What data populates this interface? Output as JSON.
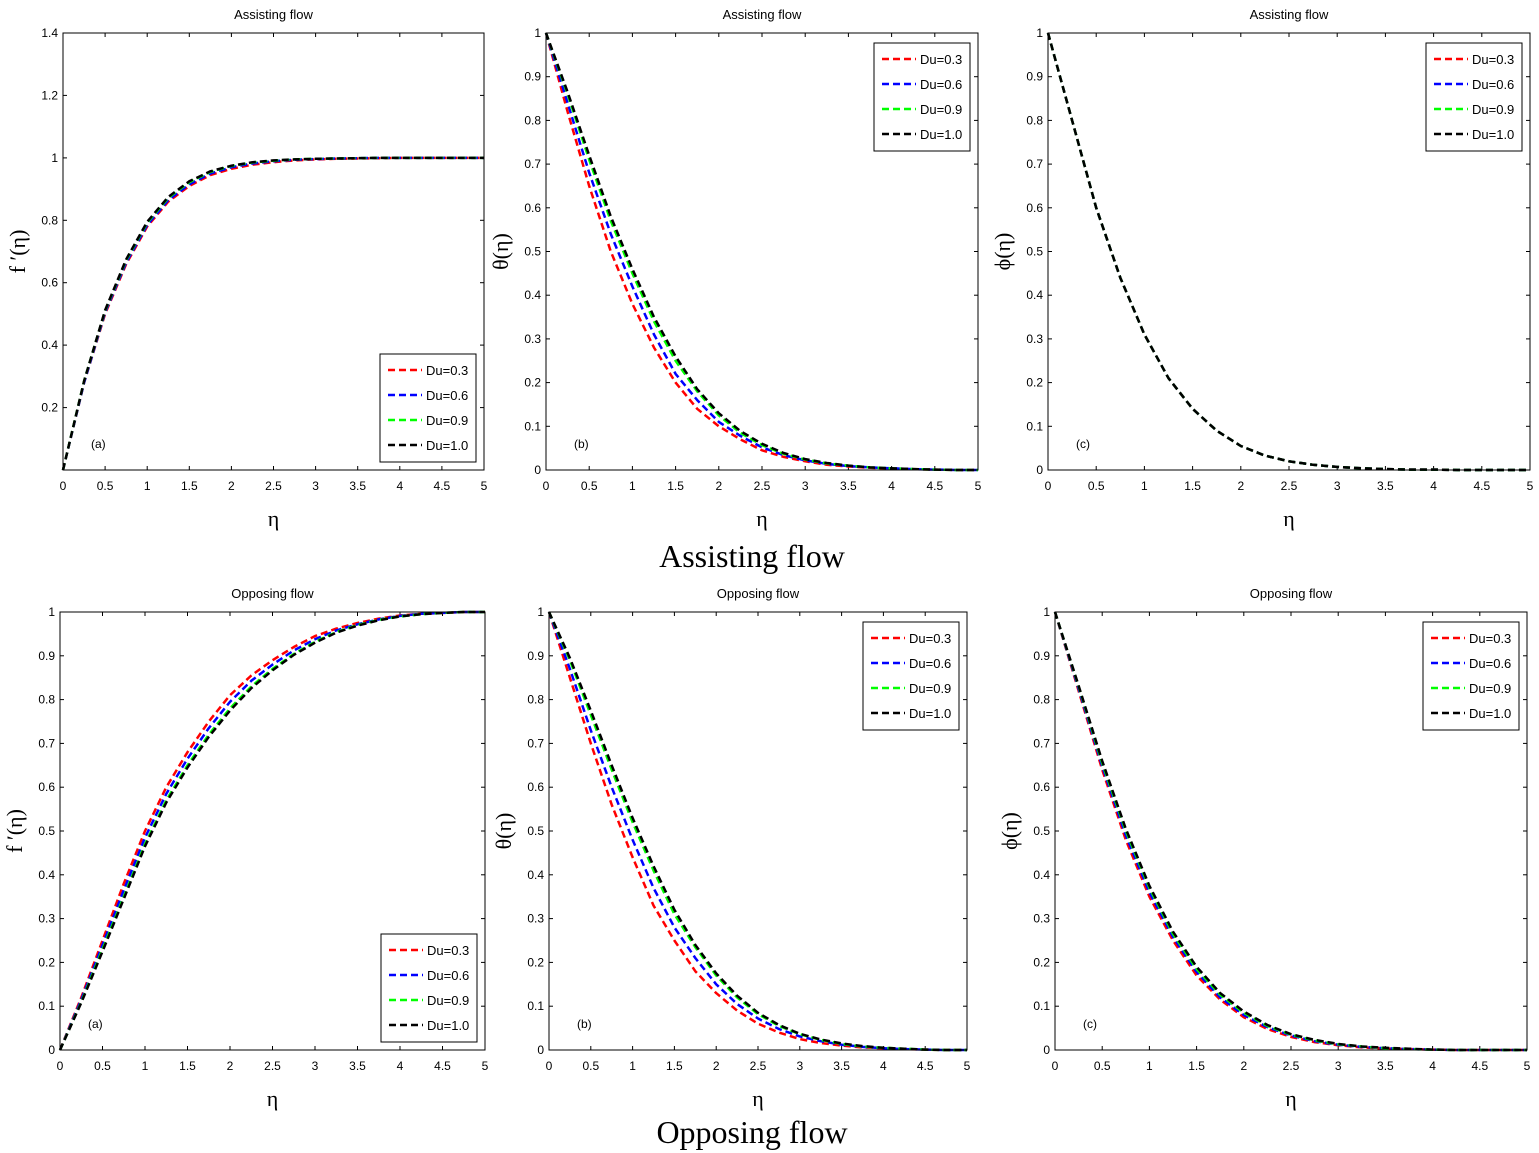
{
  "figure": {
    "row_captions": [
      "Assisting flow",
      "Opposing flow"
    ]
  },
  "chart_data": [
    {
      "type": "line",
      "title": "Assisting flow",
      "panel_tag": "(a)",
      "xlabel": "η",
      "ylabel": "f ′(η)",
      "xlim": [
        0,
        5
      ],
      "ylim": [
        0,
        1.4
      ],
      "xticks": [
        0,
        0.5,
        1,
        1.5,
        2,
        2.5,
        3,
        3.5,
        4,
        4.5,
        5
      ],
      "xtick_labels": [
        "0",
        "0.5",
        "1",
        "1.5",
        "2",
        "2.5",
        "3",
        "3.5",
        "4",
        "4.5",
        "5"
      ],
      "yticks": [
        0.2,
        0.4,
        0.6,
        0.8,
        1,
        1.2,
        1.4
      ],
      "ytick_labels": [
        "0.2",
        "0.4",
        "0.6",
        "0.8",
        "1",
        "1.2",
        "1.4"
      ],
      "legend_position": "bottom-right",
      "x": [
        0,
        0.25,
        0.5,
        0.75,
        1,
        1.25,
        1.5,
        1.75,
        2,
        2.25,
        2.5,
        2.75,
        3,
        3.25,
        3.5,
        3.75,
        4,
        4.25,
        4.5,
        4.75,
        5
      ],
      "series": [
        {
          "name": "Du=0.3",
          "color": "#ff0000",
          "values": [
            0,
            0.28,
            0.5,
            0.66,
            0.78,
            0.86,
            0.91,
            0.945,
            0.965,
            0.978,
            0.986,
            0.992,
            0.995,
            0.997,
            0.998,
            0.999,
            1,
            1,
            1,
            1,
            1
          ]
        },
        {
          "name": "Du=0.6",
          "color": "#0000ff",
          "values": [
            0,
            0.28,
            0.505,
            0.665,
            0.785,
            0.865,
            0.915,
            0.95,
            0.97,
            0.982,
            0.989,
            0.994,
            0.996,
            0.998,
            0.999,
            1,
            1,
            1,
            1,
            1,
            1
          ]
        },
        {
          "name": "Du=0.9",
          "color": "#00ff00",
          "values": [
            0,
            0.285,
            0.51,
            0.672,
            0.792,
            0.872,
            0.922,
            0.955,
            0.974,
            0.985,
            0.991,
            0.995,
            0.997,
            0.998,
            0.999,
            1,
            1,
            1,
            1,
            1,
            1
          ]
        },
        {
          "name": "Du=1.0",
          "color": "#000000",
          "values": [
            0,
            0.285,
            0.512,
            0.675,
            0.795,
            0.875,
            0.925,
            0.957,
            0.975,
            0.986,
            0.992,
            0.995,
            0.997,
            0.998,
            0.999,
            1,
            1,
            1,
            1,
            1,
            1
          ]
        }
      ]
    },
    {
      "type": "line",
      "title": "Assisting flow",
      "panel_tag": "(b)",
      "xlabel": "η",
      "ylabel": "θ(η)",
      "xlim": [
        0,
        5
      ],
      "ylim": [
        0,
        1
      ],
      "xticks": [
        0,
        0.5,
        1,
        1.5,
        2,
        2.5,
        3,
        3.5,
        4,
        4.5,
        5
      ],
      "xtick_labels": [
        "0",
        "0.5",
        "1",
        "1.5",
        "2",
        "2.5",
        "3",
        "3.5",
        "4",
        "4.5",
        "5"
      ],
      "yticks": [
        0,
        0.1,
        0.2,
        0.3,
        0.4,
        0.5,
        0.6,
        0.7,
        0.8,
        0.9,
        1
      ],
      "ytick_labels": [
        "0",
        "0.1",
        "0.2",
        "0.3",
        "0.4",
        "0.5",
        "0.6",
        "0.7",
        "0.8",
        "0.9",
        "1"
      ],
      "legend_position": "top-right",
      "x": [
        0,
        0.25,
        0.5,
        0.75,
        1,
        1.25,
        1.5,
        1.75,
        2,
        2.25,
        2.5,
        2.75,
        3,
        3.25,
        3.5,
        3.75,
        4,
        4.25,
        4.5,
        4.75,
        5
      ],
      "series": [
        {
          "name": "Du=0.3",
          "color": "#ff0000",
          "values": [
            1,
            0.82,
            0.65,
            0.5,
            0.38,
            0.28,
            0.2,
            0.14,
            0.1,
            0.07,
            0.045,
            0.03,
            0.02,
            0.012,
            0.008,
            0.005,
            0.003,
            0.002,
            0.001,
            0,
            0
          ]
        },
        {
          "name": "Du=0.6",
          "color": "#0000ff",
          "values": [
            1,
            0.84,
            0.68,
            0.54,
            0.42,
            0.31,
            0.22,
            0.16,
            0.11,
            0.078,
            0.052,
            0.034,
            0.022,
            0.014,
            0.009,
            0.006,
            0.004,
            0.002,
            0.001,
            0,
            0
          ]
        },
        {
          "name": "Du=0.9",
          "color": "#00ff00",
          "values": [
            1,
            0.86,
            0.71,
            0.57,
            0.45,
            0.34,
            0.25,
            0.18,
            0.125,
            0.085,
            0.057,
            0.037,
            0.024,
            0.015,
            0.01,
            0.006,
            0.004,
            0.002,
            0.001,
            0,
            0
          ]
        },
        {
          "name": "Du=1.0",
          "color": "#000000",
          "values": [
            1,
            0.865,
            0.72,
            0.58,
            0.46,
            0.35,
            0.26,
            0.185,
            0.13,
            0.089,
            0.06,
            0.039,
            0.025,
            0.016,
            0.01,
            0.006,
            0.004,
            0.002,
            0.001,
            0,
            0
          ]
        }
      ]
    },
    {
      "type": "line",
      "title": "Assisting flow",
      "panel_tag": "(c)",
      "xlabel": "η",
      "ylabel": "ϕ(η)",
      "xlim": [
        0,
        5
      ],
      "ylim": [
        0,
        1
      ],
      "xticks": [
        0,
        0.5,
        1,
        1.5,
        2,
        2.5,
        3,
        3.5,
        4,
        4.5,
        5
      ],
      "xtick_labels": [
        "0",
        "0.5",
        "1",
        "1.5",
        "2",
        "2.5",
        "3",
        "3.5",
        "4",
        "4.5",
        "5"
      ],
      "yticks": [
        0,
        0.1,
        0.2,
        0.3,
        0.4,
        0.5,
        0.6,
        0.7,
        0.8,
        0.9,
        1
      ],
      "ytick_labels": [
        "0",
        "0.1",
        "0.2",
        "0.3",
        "0.4",
        "0.5",
        "0.6",
        "0.7",
        "0.8",
        "0.9",
        "1"
      ],
      "legend_position": "top-right",
      "x": [
        0,
        0.25,
        0.5,
        0.75,
        1,
        1.25,
        1.5,
        1.75,
        2,
        2.25,
        2.5,
        2.75,
        3,
        3.25,
        3.5,
        3.75,
        4,
        4.25,
        4.5,
        4.75,
        5
      ],
      "series": [
        {
          "name": "Du=0.3",
          "color": "#ff0000",
          "values": [
            1,
            0.8,
            0.6,
            0.44,
            0.31,
            0.21,
            0.14,
            0.09,
            0.055,
            0.033,
            0.02,
            0.012,
            0.007,
            0.004,
            0.002,
            0.001,
            0.001,
            0,
            0,
            0,
            0
          ]
        },
        {
          "name": "Du=0.6",
          "color": "#0000ff",
          "values": [
            1,
            0.8,
            0.6,
            0.44,
            0.31,
            0.21,
            0.14,
            0.09,
            0.055,
            0.033,
            0.02,
            0.012,
            0.007,
            0.004,
            0.002,
            0.001,
            0.001,
            0,
            0,
            0,
            0
          ]
        },
        {
          "name": "Du=0.9",
          "color": "#00ff00",
          "values": [
            1,
            0.8,
            0.6,
            0.44,
            0.31,
            0.21,
            0.14,
            0.09,
            0.055,
            0.033,
            0.02,
            0.012,
            0.007,
            0.004,
            0.002,
            0.001,
            0.001,
            0,
            0,
            0,
            0
          ]
        },
        {
          "name": "Du=1.0",
          "color": "#000000",
          "values": [
            1,
            0.8,
            0.6,
            0.44,
            0.31,
            0.21,
            0.14,
            0.09,
            0.055,
            0.033,
            0.02,
            0.012,
            0.007,
            0.004,
            0.002,
            0.001,
            0.001,
            0,
            0,
            0,
            0
          ]
        }
      ]
    },
    {
      "type": "line",
      "title": "Opposing flow",
      "panel_tag": "(a)",
      "xlabel": "η",
      "ylabel": "f ′(η)",
      "xlim": [
        0,
        5
      ],
      "ylim": [
        0,
        1
      ],
      "xticks": [
        0,
        0.5,
        1,
        1.5,
        2,
        2.5,
        3,
        3.5,
        4,
        4.5,
        5
      ],
      "xtick_labels": [
        "0",
        "0.5",
        "1",
        "1.5",
        "2",
        "2.5",
        "3",
        "3.5",
        "4",
        "4.5",
        "5"
      ],
      "yticks": [
        0,
        0.1,
        0.2,
        0.3,
        0.4,
        0.5,
        0.6,
        0.7,
        0.8,
        0.9,
        1
      ],
      "ytick_labels": [
        "0",
        "0.1",
        "0.2",
        "0.3",
        "0.4",
        "0.5",
        "0.6",
        "0.7",
        "0.8",
        "0.9",
        "1"
      ],
      "legend_position": "bottom-right",
      "x": [
        0,
        0.25,
        0.5,
        0.75,
        1,
        1.25,
        1.5,
        1.75,
        2,
        2.25,
        2.5,
        2.75,
        3,
        3.25,
        3.5,
        3.75,
        4,
        4.25,
        4.5,
        4.75,
        5
      ],
      "series": [
        {
          "name": "Du=0.3",
          "color": "#ff0000",
          "values": [
            0,
            0.12,
            0.25,
            0.38,
            0.5,
            0.6,
            0.68,
            0.75,
            0.81,
            0.855,
            0.89,
            0.92,
            0.945,
            0.962,
            0.975,
            0.985,
            0.992,
            0.996,
            0.998,
            1,
            1
          ]
        },
        {
          "name": "Du=0.6",
          "color": "#0000ff",
          "values": [
            0,
            0.115,
            0.24,
            0.365,
            0.485,
            0.585,
            0.665,
            0.735,
            0.795,
            0.843,
            0.88,
            0.912,
            0.938,
            0.958,
            0.972,
            0.983,
            0.991,
            0.996,
            0.998,
            1,
            1
          ]
        },
        {
          "name": "Du=0.9",
          "color": "#00ff00",
          "values": [
            0,
            0.11,
            0.23,
            0.35,
            0.47,
            0.57,
            0.65,
            0.72,
            0.78,
            0.83,
            0.87,
            0.904,
            0.932,
            0.954,
            0.97,
            0.982,
            0.99,
            0.995,
            0.998,
            1,
            1
          ]
        },
        {
          "name": "Du=1.0",
          "color": "#000000",
          "values": [
            0,
            0.108,
            0.225,
            0.345,
            0.465,
            0.565,
            0.645,
            0.715,
            0.775,
            0.826,
            0.867,
            0.902,
            0.93,
            0.953,
            0.969,
            0.981,
            0.99,
            0.995,
            0.998,
            1,
            1
          ]
        }
      ]
    },
    {
      "type": "line",
      "title": "Opposing flow",
      "panel_tag": "(b)",
      "xlabel": "η",
      "ylabel": "θ(η)",
      "xlim": [
        0,
        5
      ],
      "ylim": [
        0,
        1
      ],
      "xticks": [
        0,
        0.5,
        1,
        1.5,
        2,
        2.5,
        3,
        3.5,
        4,
        4.5,
        5
      ],
      "xtick_labels": [
        "0",
        "0.5",
        "1",
        "1.5",
        "2",
        "2.5",
        "3",
        "3.5",
        "4",
        "4.5",
        "5"
      ],
      "yticks": [
        0,
        0.1,
        0.2,
        0.3,
        0.4,
        0.5,
        0.6,
        0.7,
        0.8,
        0.9,
        1
      ],
      "ytick_labels": [
        "0",
        "0.1",
        "0.2",
        "0.3",
        "0.4",
        "0.5",
        "0.6",
        "0.7",
        "0.8",
        "0.9",
        "1"
      ],
      "legend_position": "top-right",
      "x": [
        0,
        0.25,
        0.5,
        0.75,
        1,
        1.25,
        1.5,
        1.75,
        2,
        2.25,
        2.5,
        2.75,
        3,
        3.25,
        3.5,
        3.75,
        4,
        4.25,
        4.5,
        4.75,
        5
      ],
      "series": [
        {
          "name": "Du=0.3",
          "color": "#ff0000",
          "values": [
            1,
            0.85,
            0.7,
            0.56,
            0.44,
            0.33,
            0.25,
            0.18,
            0.13,
            0.09,
            0.06,
            0.04,
            0.025,
            0.016,
            0.01,
            0.006,
            0.004,
            0.002,
            0.001,
            0,
            0
          ]
        },
        {
          "name": "Du=0.6",
          "color": "#0000ff",
          "values": [
            1,
            0.87,
            0.73,
            0.6,
            0.48,
            0.37,
            0.28,
            0.21,
            0.15,
            0.105,
            0.072,
            0.048,
            0.031,
            0.02,
            0.012,
            0.007,
            0.004,
            0.002,
            0.001,
            0,
            0
          ]
        },
        {
          "name": "Du=0.9",
          "color": "#00ff00",
          "values": [
            1,
            0.89,
            0.765,
            0.64,
            0.52,
            0.41,
            0.31,
            0.235,
            0.17,
            0.12,
            0.082,
            0.055,
            0.036,
            0.023,
            0.014,
            0.008,
            0.005,
            0.003,
            0.001,
            0,
            0
          ]
        },
        {
          "name": "Du=1.0",
          "color": "#000000",
          "values": [
            1,
            0.895,
            0.775,
            0.65,
            0.53,
            0.42,
            0.32,
            0.24,
            0.175,
            0.124,
            0.085,
            0.057,
            0.037,
            0.024,
            0.015,
            0.009,
            0.005,
            0.003,
            0.001,
            0,
            0
          ]
        }
      ]
    },
    {
      "type": "line",
      "title": "Opposing flow",
      "panel_tag": "(c)",
      "xlabel": "η",
      "ylabel": "ϕ(η)",
      "xlim": [
        0,
        5
      ],
      "ylim": [
        0,
        1
      ],
      "xticks": [
        0,
        0.5,
        1,
        1.5,
        2,
        2.5,
        3,
        3.5,
        4,
        4.5,
        5
      ],
      "xtick_labels": [
        "0",
        "0.5",
        "1",
        "1.5",
        "2",
        "2.5",
        "3",
        "3.5",
        "4",
        "4.5",
        "5"
      ],
      "yticks": [
        0,
        0.1,
        0.2,
        0.3,
        0.4,
        0.5,
        0.6,
        0.7,
        0.8,
        0.9,
        1
      ],
      "ytick_labels": [
        "0",
        "0.1",
        "0.2",
        "0.3",
        "0.4",
        "0.5",
        "0.6",
        "0.7",
        "0.8",
        "0.9",
        "1"
      ],
      "legend_position": "top-right",
      "x": [
        0,
        0.25,
        0.5,
        0.75,
        1,
        1.25,
        1.5,
        1.75,
        2,
        2.25,
        2.5,
        2.75,
        3,
        3.25,
        3.5,
        3.75,
        4,
        4.25,
        4.5,
        4.75,
        5
      ],
      "series": [
        {
          "name": "Du=0.3",
          "color": "#ff0000",
          "values": [
            1,
            0.82,
            0.64,
            0.48,
            0.35,
            0.25,
            0.17,
            0.115,
            0.075,
            0.048,
            0.03,
            0.018,
            0.011,
            0.006,
            0.003,
            0.002,
            0.001,
            0,
            0,
            0,
            0
          ]
        },
        {
          "name": "Du=0.6",
          "color": "#0000ff",
          "values": [
            1,
            0.825,
            0.648,
            0.49,
            0.36,
            0.258,
            0.178,
            0.12,
            0.08,
            0.052,
            0.033,
            0.02,
            0.012,
            0.007,
            0.004,
            0.002,
            0.001,
            0,
            0,
            0,
            0
          ]
        },
        {
          "name": "Du=0.9",
          "color": "#00ff00",
          "values": [
            1,
            0.83,
            0.655,
            0.5,
            0.37,
            0.265,
            0.185,
            0.126,
            0.085,
            0.055,
            0.035,
            0.022,
            0.013,
            0.008,
            0.004,
            0.002,
            0.001,
            0,
            0,
            0,
            0
          ]
        },
        {
          "name": "Du=1.0",
          "color": "#000000",
          "values": [
            1,
            0.832,
            0.66,
            0.505,
            0.375,
            0.27,
            0.19,
            0.13,
            0.088,
            0.057,
            0.036,
            0.023,
            0.014,
            0.008,
            0.005,
            0.003,
            0.001,
            0,
            0,
            0,
            0
          ]
        }
      ]
    }
  ]
}
